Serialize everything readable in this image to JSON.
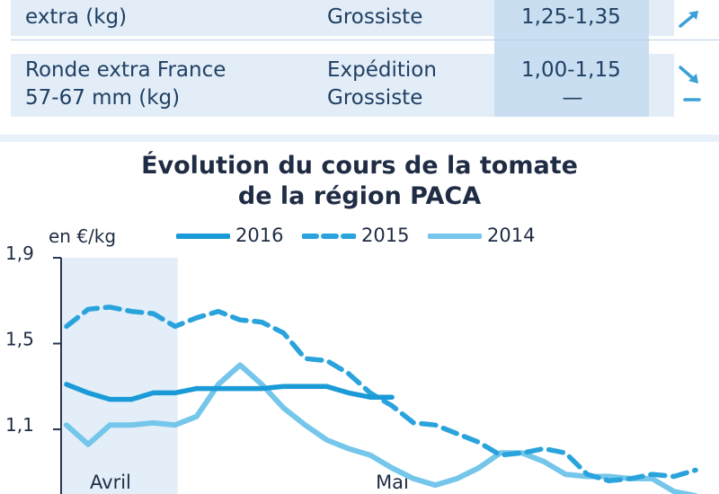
{
  "table": {
    "rows": [
      {
        "product_lines": [
          "extra (kg)"
        ],
        "market_lines": [
          "Grossiste"
        ],
        "price_lines": [
          "1,25-1,35"
        ],
        "trends": [
          "up"
        ]
      },
      {
        "product_lines": [
          "Ronde extra France",
          "57-67 mm (kg)"
        ],
        "market_lines": [
          "Expédition",
          "Grossiste"
        ],
        "price_lines": [
          "1,00-1,15",
          "—"
        ],
        "trends": [
          "down",
          "stable"
        ]
      }
    ],
    "colors": {
      "band": "#e2edf7",
      "value_column": "#c9def0",
      "trend_arrow": "#3aa0d8"
    }
  },
  "chart_data": {
    "type": "line",
    "title": "Évolution du cours de la tomate de la région PACA",
    "title_lines": [
      "Évolution du cours de la tomate",
      "de la région PACA"
    ],
    "unit": "en €/kg",
    "y_ticks": [
      "1,9",
      "1,5",
      "1,1"
    ],
    "y_tick_values": [
      1.9,
      1.5,
      1.1
    ],
    "ylim": [
      0.8,
      1.9
    ],
    "x_period_labels": [
      "Avril",
      "Mai"
    ],
    "x_period_index": [
      0,
      15
    ],
    "x_range": [
      0,
      29
    ],
    "shaded_period": [
      0,
      5
    ],
    "legend_position": "top",
    "grid": false,
    "series": [
      {
        "name": "2016",
        "style": "solid",
        "color": "#1a9ad6",
        "x": [
          0,
          1,
          2,
          3,
          4,
          5,
          6,
          7,
          8,
          9,
          10,
          11,
          12,
          13,
          14,
          15
        ],
        "values": [
          1.31,
          1.27,
          1.24,
          1.24,
          1.27,
          1.27,
          1.29,
          1.29,
          1.29,
          1.29,
          1.3,
          1.3,
          1.3,
          1.27,
          1.25,
          1.25
        ]
      },
      {
        "name": "2015",
        "style": "dashed",
        "color": "#2aa3dc",
        "x": [
          0,
          1,
          2,
          3,
          4,
          5,
          6,
          7,
          8,
          9,
          10,
          11,
          12,
          13,
          14,
          15,
          16,
          17,
          18,
          19,
          20,
          21,
          22,
          23,
          24,
          25,
          26,
          27,
          28,
          29
        ],
        "values": [
          1.58,
          1.66,
          1.67,
          1.65,
          1.64,
          1.58,
          1.62,
          1.65,
          1.61,
          1.6,
          1.55,
          1.43,
          1.42,
          1.36,
          1.27,
          1.21,
          1.13,
          1.12,
          1.08,
          1.04,
          0.98,
          0.99,
          1.01,
          0.99,
          0.89,
          0.86,
          0.87,
          0.89,
          0.88,
          0.91
        ]
      },
      {
        "name": "2014",
        "style": "solid",
        "color": "#74c6ea",
        "x": [
          0,
          1,
          2,
          3,
          4,
          5,
          6,
          7,
          8,
          9,
          10,
          11,
          12,
          13,
          14,
          15,
          16,
          17,
          18,
          19,
          20,
          21,
          22,
          23,
          24,
          25,
          26,
          27,
          28,
          29
        ],
        "values": [
          1.12,
          1.03,
          1.12,
          1.12,
          1.13,
          1.12,
          1.16,
          1.31,
          1.4,
          1.31,
          1.2,
          1.12,
          1.05,
          1.01,
          0.98,
          0.92,
          0.87,
          0.84,
          0.87,
          0.92,
          0.99,
          0.99,
          0.95,
          0.89,
          0.88,
          0.88,
          0.87,
          0.87,
          0.81,
          0.79
        ]
      }
    ],
    "colors": {
      "axis": "#2a3550",
      "shade": "#e3eef8",
      "text": "#1f2c44"
    }
  }
}
